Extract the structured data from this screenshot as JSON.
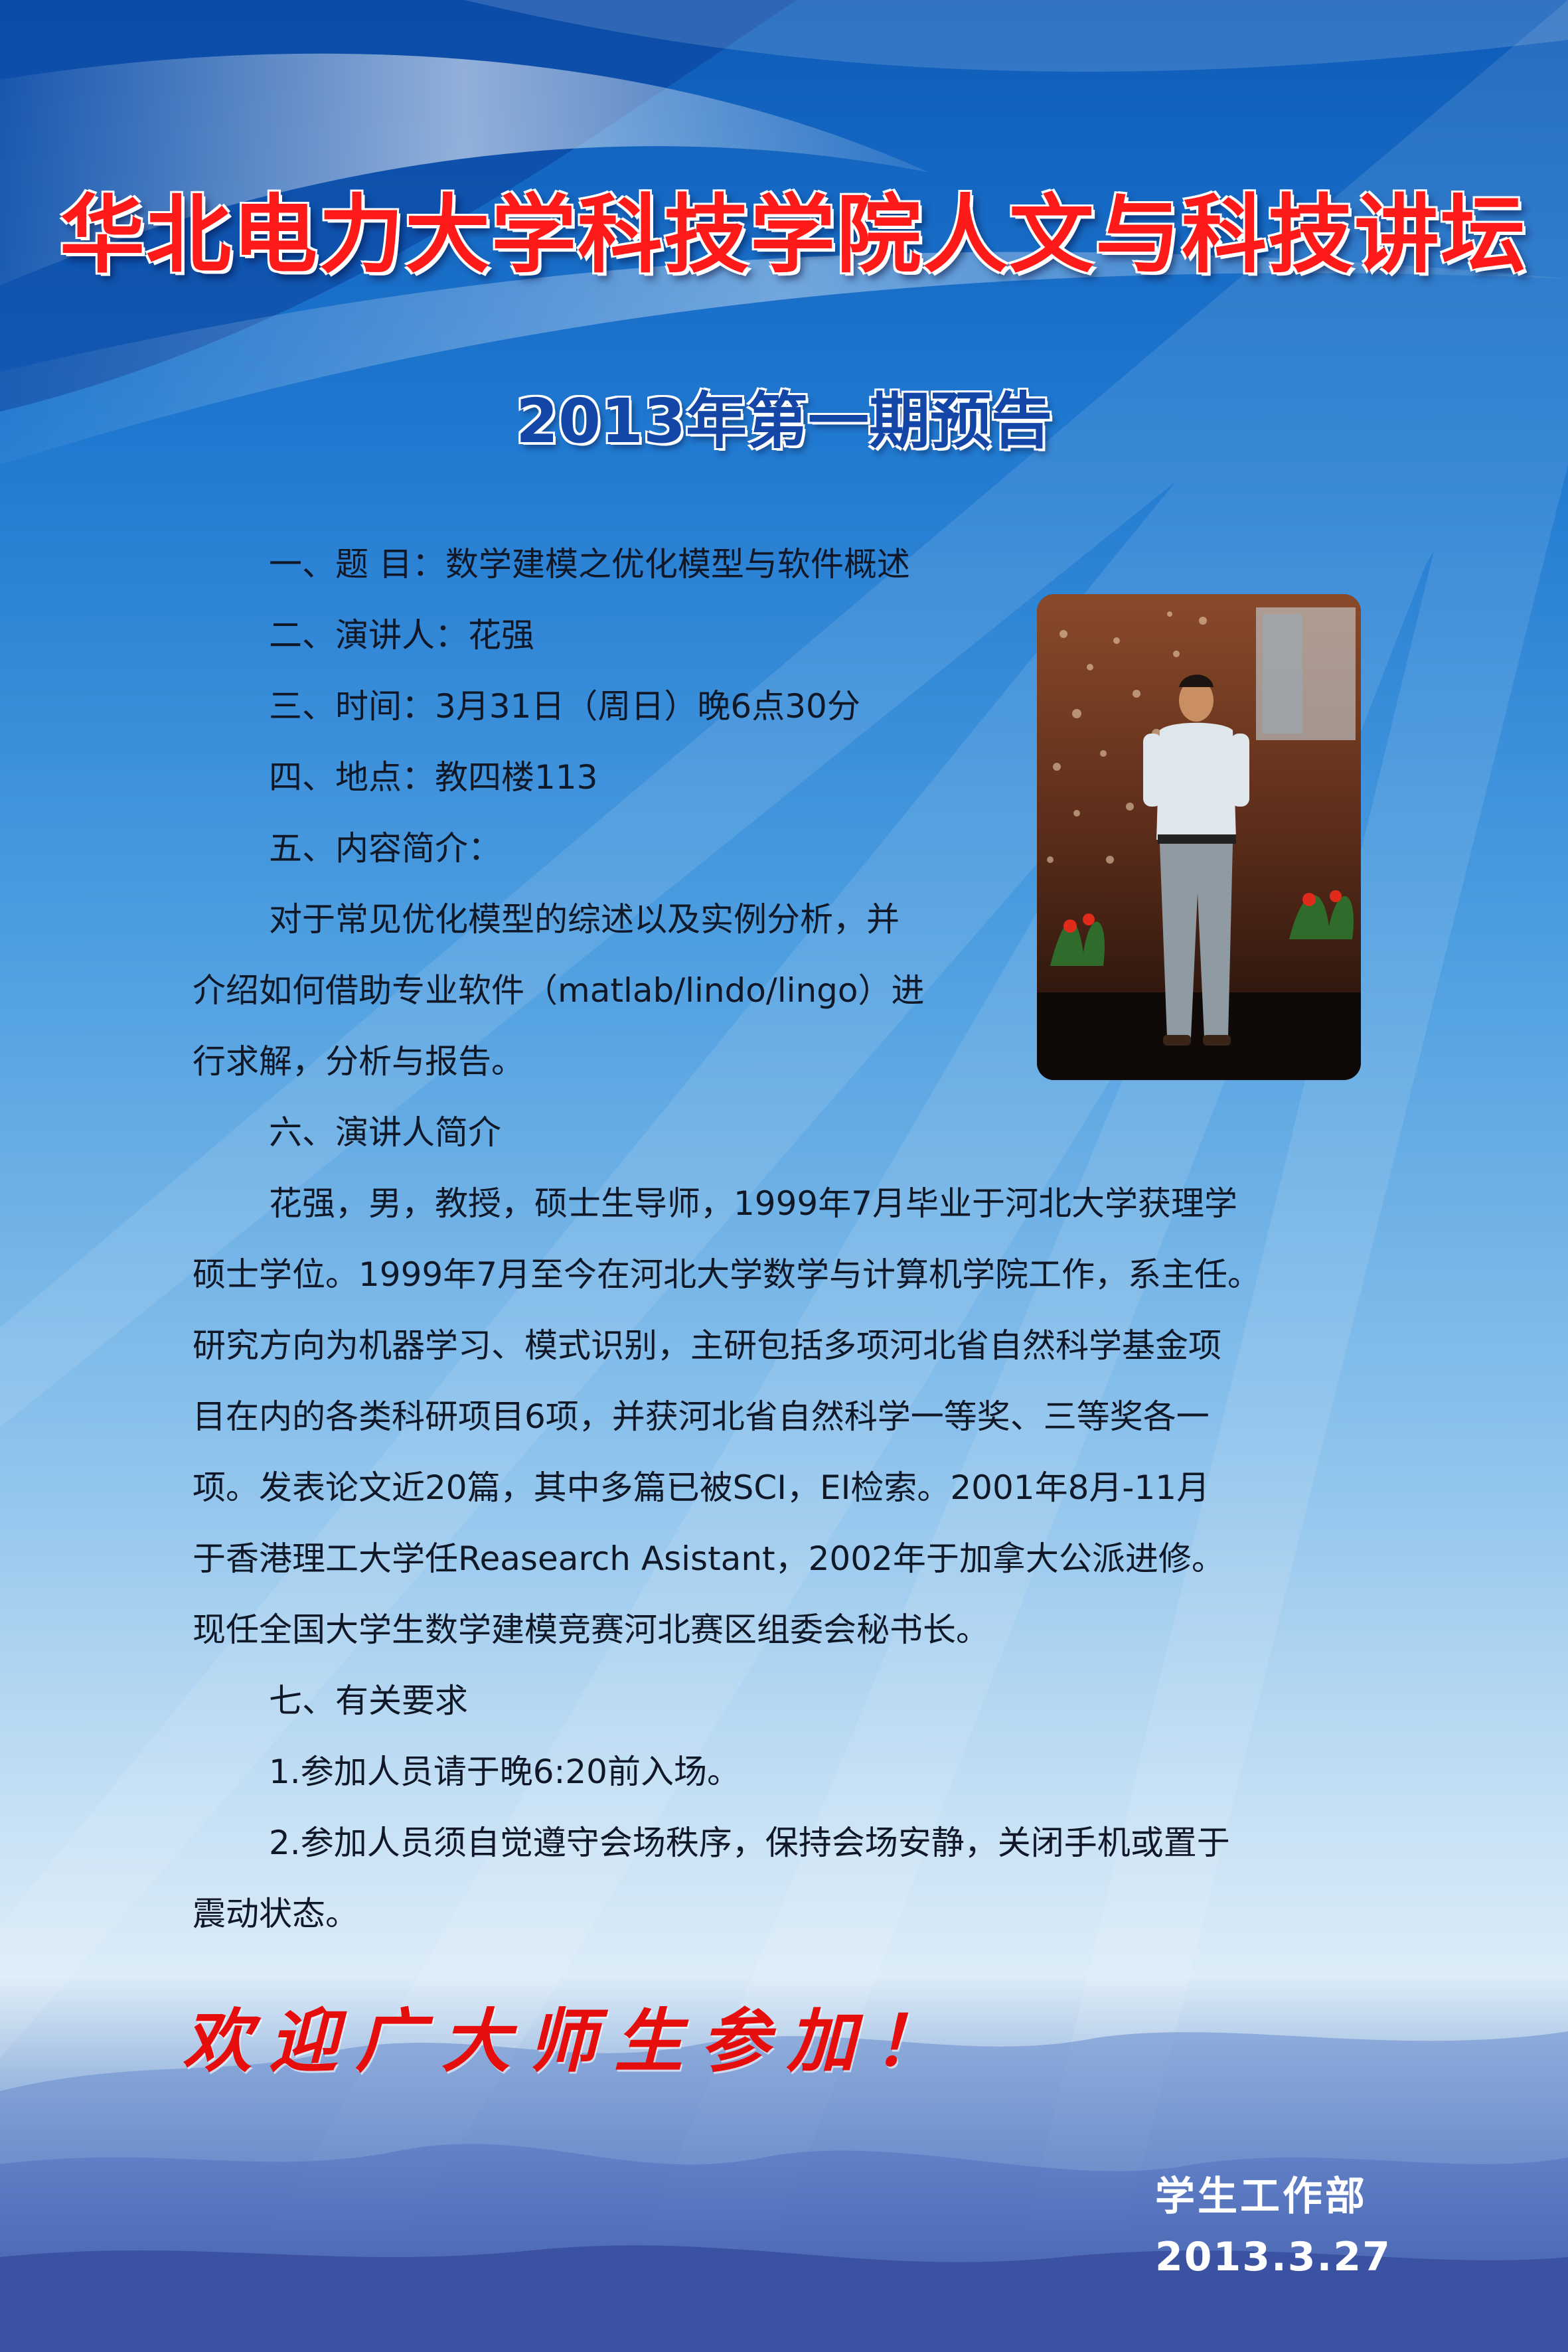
{
  "header": {
    "title": "华北电力大学科技学院人文与科技讲坛",
    "subtitle": "2013年第一期预告"
  },
  "details": {
    "topic": "一、题 目：数学建模之优化模型与软件概述",
    "speaker": "二、演讲人：花强",
    "time": "三、时间：3月31日（周日）晚6点30分",
    "place": "四、地点：教四楼113",
    "content_heading": "五、内容简介：",
    "content_lines": [
      "对于常见优化模型的综述以及实例分析，并",
      "介绍如何借助专业软件（matlab/lindo/lingo）进",
      "行求解，分析与报告。"
    ],
    "bio_heading": "六、演讲人简介",
    "bio_lines": [
      "花强，男，教授，硕士生导师，1999年7月毕业于河北大学获理学",
      "硕士学位。1999年7月至今在河北大学数学与计算机学院工作，系主任。",
      "研究方向为机器学习、模式识别，主研包括多项河北省自然科学基金项",
      "目在内的各类科研项目6项，并获河北省自然科学一等奖、三等奖各一",
      "项。发表论文近20篇，其中多篇已被SCI，EI检索。2001年8月-11月",
      "于香港理工大学任Reasearch Asistant，2002年于加拿大公派进修。",
      "现任全国大学生数学建模竞赛河北赛区组委会秘书长。"
    ],
    "requirements_heading": "七、有关要求",
    "requirements_lines": [
      "1.参加人员请于晚6:20前入场。",
      "2.参加人员须自觉遵守会场秩序，保持会场安静，关闭手机或置于",
      "震动状态。"
    ]
  },
  "footer": {
    "welcome": "欢迎广大师生参加！",
    "department": "学生工作部",
    "date": "2013.3.27"
  },
  "colors": {
    "title_red": "#ff1a1a",
    "subtitle_blue": "#1446a8",
    "welcome_red": "#e60d0d"
  }
}
